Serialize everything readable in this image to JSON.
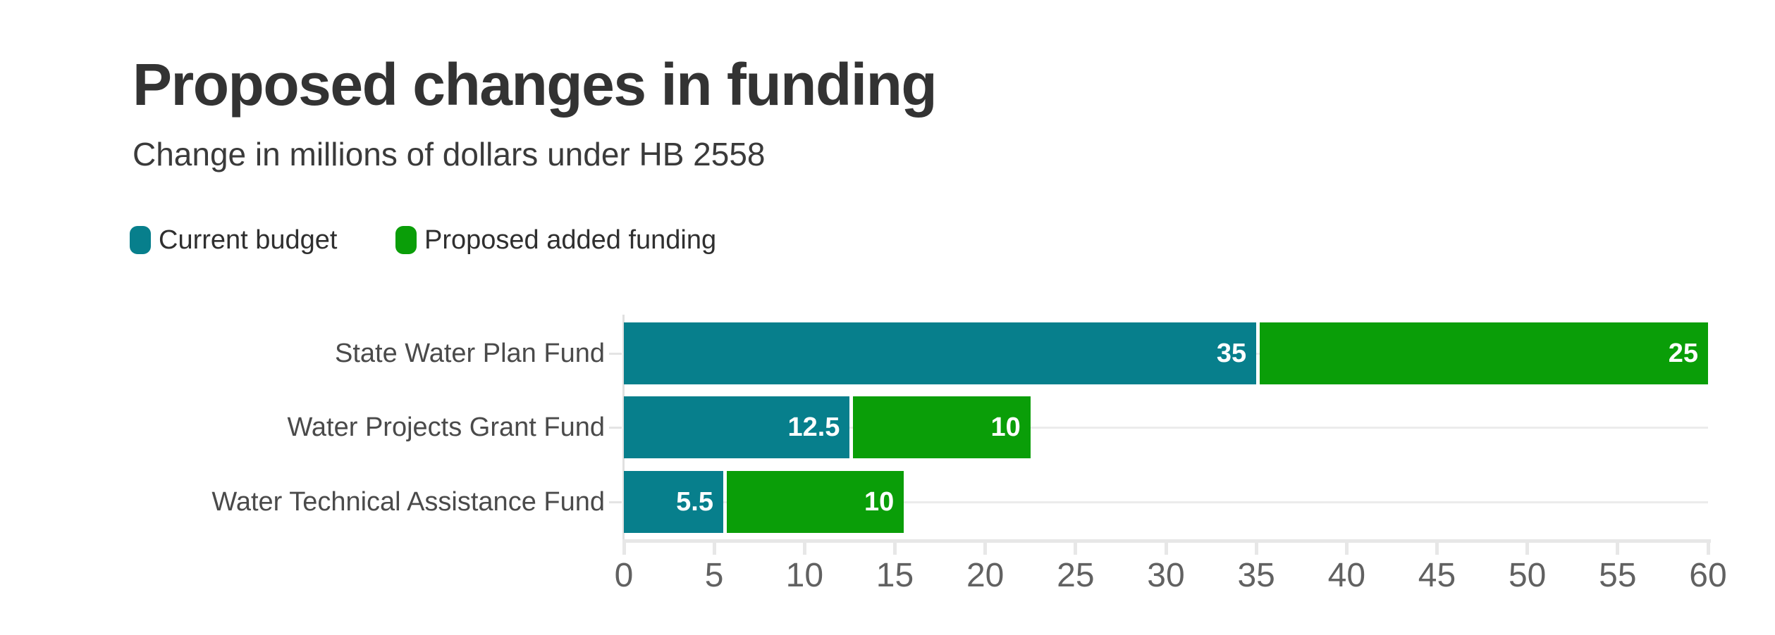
{
  "header": {
    "title": "Proposed changes in funding",
    "subtitle": "Change in millions of dollars under HB 2558"
  },
  "legend": [
    {
      "label": "Current budget",
      "color": "#077f8c"
    },
    {
      "label": "Proposed added funding",
      "color": "#0a9e08"
    }
  ],
  "colors": {
    "background": "#ffffff",
    "teal_series": "#077f8c",
    "green_series": "#0a9e08",
    "title_text": "#333333",
    "subtitle_text": "#3a3a3a",
    "category_label_text": "#4a4a4a",
    "value_label_text": "#ffffff",
    "axis_line": "#e7e7e7",
    "gridline": "#ececec",
    "tick_label_text": "#616161"
  },
  "chart_data": {
    "type": "bar",
    "orientation": "horizontal",
    "stacked": true,
    "title": "Proposed changes in funding",
    "subtitle": "Change in millions of dollars under HB 2558",
    "categories": [
      "State Water Plan Fund",
      "Water Projects Grant Fund",
      "Water Technical Assistance Fund"
    ],
    "series": [
      {
        "name": "Current budget",
        "color": "#077f8c",
        "values": [
          35,
          12.5,
          5.5
        ]
      },
      {
        "name": "Proposed added funding",
        "color": "#0a9e08",
        "values": [
          25,
          10,
          10
        ]
      }
    ],
    "value_labels": [
      [
        "35",
        "12.5",
        "5.5"
      ],
      [
        "25",
        "10",
        "10"
      ]
    ],
    "xlabel": "",
    "ylabel": "",
    "xlim": [
      0,
      60
    ],
    "x_ticks": [
      0,
      5,
      10,
      15,
      20,
      25,
      30,
      35,
      40,
      45,
      50,
      55,
      60
    ],
    "grid": "category-center horizontal lines",
    "legend_position": "top-left"
  }
}
